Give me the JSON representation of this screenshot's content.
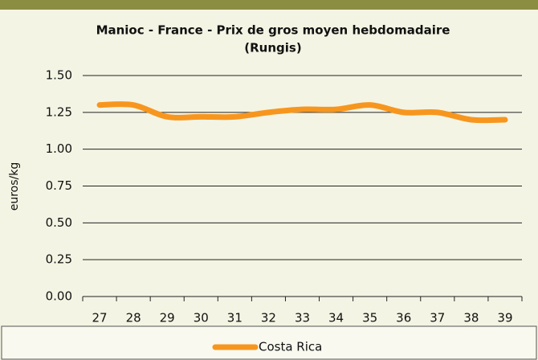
{
  "chart_data": {
    "type": "line",
    "title": [
      "Manioc - France - Prix de gros moyen hebdomadaire",
      "(Rungis)"
    ],
    "y_label": "euros/kg",
    "categories": [
      "27",
      "28",
      "29",
      "30",
      "31",
      "32",
      "33",
      "34",
      "35",
      "36",
      "37",
      "38",
      "39"
    ],
    "series": [
      {
        "name": "Costa Rica",
        "color": "#f7961e",
        "values": [
          1.3,
          1.3,
          1.22,
          1.22,
          1.22,
          1.25,
          1.27,
          1.27,
          1.3,
          1.25,
          1.25,
          1.2,
          1.2
        ]
      }
    ],
    "ylim": [
      0,
      1.5
    ],
    "yticks": [
      {
        "value": 0,
        "label": "0.00"
      },
      {
        "value": 0.25,
        "label": "0.25"
      },
      {
        "value": 0.5,
        "label": "0.50"
      },
      {
        "value": 0.75,
        "label": "0.75"
      },
      {
        "value": 1,
        "label": "1.00"
      },
      {
        "value": 1.25,
        "label": "1.25"
      },
      {
        "value": 1.5,
        "label": "1.50"
      }
    ],
    "grid": true,
    "legend": "bottom"
  }
}
